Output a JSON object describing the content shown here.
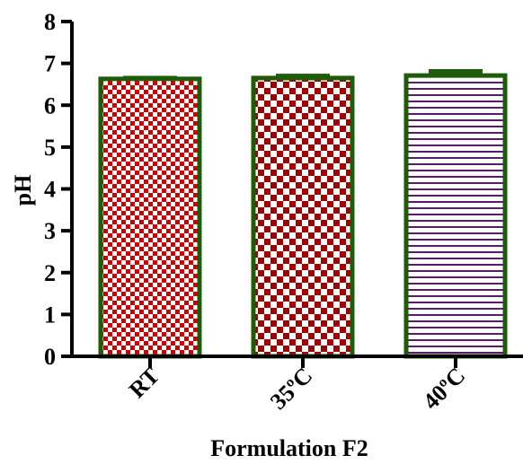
{
  "chart_data": {
    "type": "bar",
    "title": "",
    "xlabel": "Formulation F2",
    "ylabel": "pH",
    "categories": [
      "RT",
      "35ºC",
      "40ºC"
    ],
    "values": [
      6.63,
      6.65,
      6.71
    ],
    "errors": [
      0.02,
      0.05,
      0.1
    ],
    "ylim": [
      0,
      8
    ],
    "yticks": [
      "0",
      "1",
      "2",
      "3",
      "4",
      "5",
      "6",
      "7",
      "8"
    ],
    "grid": false,
    "legend": "none",
    "bar_edge_color": "#1f5c0a",
    "bar_fills": [
      {
        "pattern": "fine-checker",
        "color": "#cc0000"
      },
      {
        "pattern": "checker",
        "color": "#a00000"
      },
      {
        "pattern": "horizontal-lines",
        "color": "#5a1a6e"
      }
    ]
  }
}
